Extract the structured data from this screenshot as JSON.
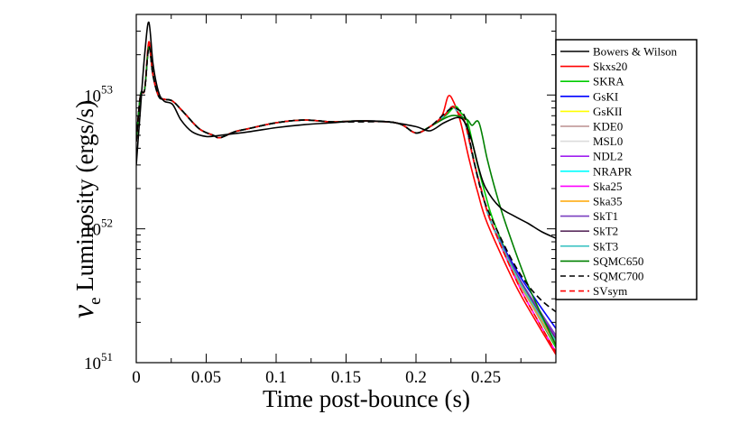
{
  "chart_data": {
    "type": "line",
    "title": "",
    "xlabel": "Time post-bounce (s)",
    "ylabel_symbol": "ν",
    "ylabel_sub": "e",
    "ylabel_rest": " Luminosity (ergs/s)",
    "xlim": [
      0,
      0.3
    ],
    "ylim": [
      1e+51,
      4e+53
    ],
    "yscale": "log",
    "x_ticks": [
      0,
      0.05,
      0.1,
      0.15,
      0.2,
      0.25
    ],
    "x_tick_labels": [
      "0",
      "0.05",
      "0.1",
      "0.15",
      "0.2",
      "0.25"
    ],
    "y_ticks": [
      1e+51,
      1e+52,
      1e+53
    ],
    "y_tick_base": "10",
    "y_tick_exponents": [
      "51",
      "52",
      "53"
    ],
    "legend_position": "right",
    "series": [
      {
        "name": "Bowers & Wilson",
        "color": "#000000",
        "dash": "solid",
        "peak": 3.5e+53,
        "kink": 0.026,
        "end": 8.5e+51,
        "x": [
          0,
          0.003,
          0.006,
          0.009,
          0.012,
          0.016,
          0.02,
          0.026,
          0.032,
          0.04,
          0.05,
          0.06,
          0.08,
          0.1,
          0.12,
          0.14,
          0.16,
          0.18,
          0.2,
          0.21,
          0.22,
          0.23,
          0.235,
          0.24,
          0.245,
          0.25,
          0.26,
          0.27,
          0.28,
          0.29,
          0.3
        ],
        "y": [
          3e+52,
          8e+52,
          2e+53,
          3.5e+53,
          1.7e+53,
          1.05e+53,
          9e+52,
          8.5e+52,
          6.5e+52,
          5.3e+52,
          4.9e+52,
          5e+52,
          5.3e+52,
          5.7e+52,
          6e+52,
          6.2e+52,
          6.4e+52,
          6.3e+52,
          5.8e+52,
          5.4e+52,
          6.2e+52,
          6.8e+52,
          6.2e+52,
          4.5e+52,
          2.8e+52,
          2e+52,
          1.45e+52,
          1.25e+52,
          1.1e+52,
          9.5e+51,
          8.5e+51
        ]
      },
      {
        "name": "Skxs20",
        "color": "#ff0000",
        "dash": "solid",
        "peak": 2.5e+53,
        "kink": 0.226,
        "end": 1.15e+51
      },
      {
        "name": "SKRA",
        "color": "#00cc00",
        "dash": "solid",
        "peak": 2.3e+53,
        "kink": 0.231,
        "end": 1.3e+51
      },
      {
        "name": "GsKI",
        "color": "#0000ff",
        "dash": "solid",
        "peak": 2.3e+53,
        "kink": 0.229,
        "end": 1.8e+51
      },
      {
        "name": "GsKII",
        "color": "#ffff00",
        "dash": "solid",
        "peak": 2.3e+53,
        "kink": 0.229,
        "end": 1.45e+51
      },
      {
        "name": "KDE0",
        "color": "#bc8f8f",
        "dash": "solid",
        "peak": 2.3e+53,
        "kink": 0.229,
        "end": 1.35e+51
      },
      {
        "name": "MSL0",
        "color": "#dcdcdc",
        "dash": "solid",
        "peak": 2.3e+53,
        "kink": 0.229,
        "end": 1.5e+51
      },
      {
        "name": "NDL2",
        "color": "#a020f0",
        "dash": "solid",
        "peak": 2.3e+53,
        "kink": 0.229,
        "end": 1.55e+51
      },
      {
        "name": "NRAPR",
        "color": "#00ffff",
        "dash": "solid",
        "peak": 2.3e+53,
        "kink": 0.229,
        "end": 1.4e+51
      },
      {
        "name": "Ska25",
        "color": "#ff00ff",
        "dash": "solid",
        "peak": 2.3e+53,
        "kink": 0.229,
        "end": 1.2e+51
      },
      {
        "name": "Ska35",
        "color": "#ffa500",
        "dash": "solid",
        "peak": 2.3e+53,
        "kink": 0.229,
        "end": 1.4e+51
      },
      {
        "name": "SkT1",
        "color": "#7a3fbf",
        "dash": "solid",
        "peak": 2.3e+53,
        "kink": 0.229,
        "end": 1.6e+51
      },
      {
        "name": "SkT2",
        "color": "#5a2d5e",
        "dash": "solid",
        "peak": 2.3e+53,
        "kink": 0.229,
        "end": 1.5e+51
      },
      {
        "name": "SkT3",
        "color": "#40c4c4",
        "dash": "solid",
        "peak": 2.3e+53,
        "kink": 0.229,
        "end": 1.45e+51
      },
      {
        "name": "SQMC650",
        "color": "#008000",
        "dash": "solid",
        "peak": 2.3e+53,
        "kink": 0.239,
        "end": 1.35e+51
      },
      {
        "name": "SQMC700",
        "color": "#000000",
        "dash": "dashed",
        "peak": 2.3e+53,
        "kink": 0.229,
        "end": 2.4e+51,
        "x": [
          0,
          0.003,
          0.006,
          0.009,
          0.012,
          0.016,
          0.02,
          0.026,
          0.034,
          0.045,
          0.055,
          0.06,
          0.07,
          0.08,
          0.1,
          0.12,
          0.14,
          0.16,
          0.18,
          0.19,
          0.2,
          0.21,
          0.22,
          0.226,
          0.23,
          0.235,
          0.24,
          0.245,
          0.25,
          0.26,
          0.27,
          0.28,
          0.29,
          0.3
        ],
        "y": [
          4.5e+52,
          1e+53,
          1.1e+53,
          2.3e+53,
          1.4e+53,
          9.8e+52,
          9.3e+52,
          9e+52,
          7.4e+52,
          5.6e+52,
          5e+52,
          4.8e+52,
          5.3e+52,
          5.6e+52,
          6.2e+52,
          6.5e+52,
          6.3e+52,
          6.3e+52,
          6.3e+52,
          6e+52,
          5.2e+52,
          5.8e+52,
          7.2e+52,
          8e+52,
          7.8e+52,
          6.8e+52,
          3.8e+52,
          2.2e+52,
          1.5e+52,
          8.8e+51,
          5.5e+51,
          3.8e+51,
          2.9e+51,
          2.4e+51
        ]
      },
      {
        "name": "SVsym",
        "color": "#ff0000",
        "dash": "dashed",
        "peak": 2.4e+53,
        "kink": 0.229,
        "end": 1.2e+51
      }
    ]
  }
}
